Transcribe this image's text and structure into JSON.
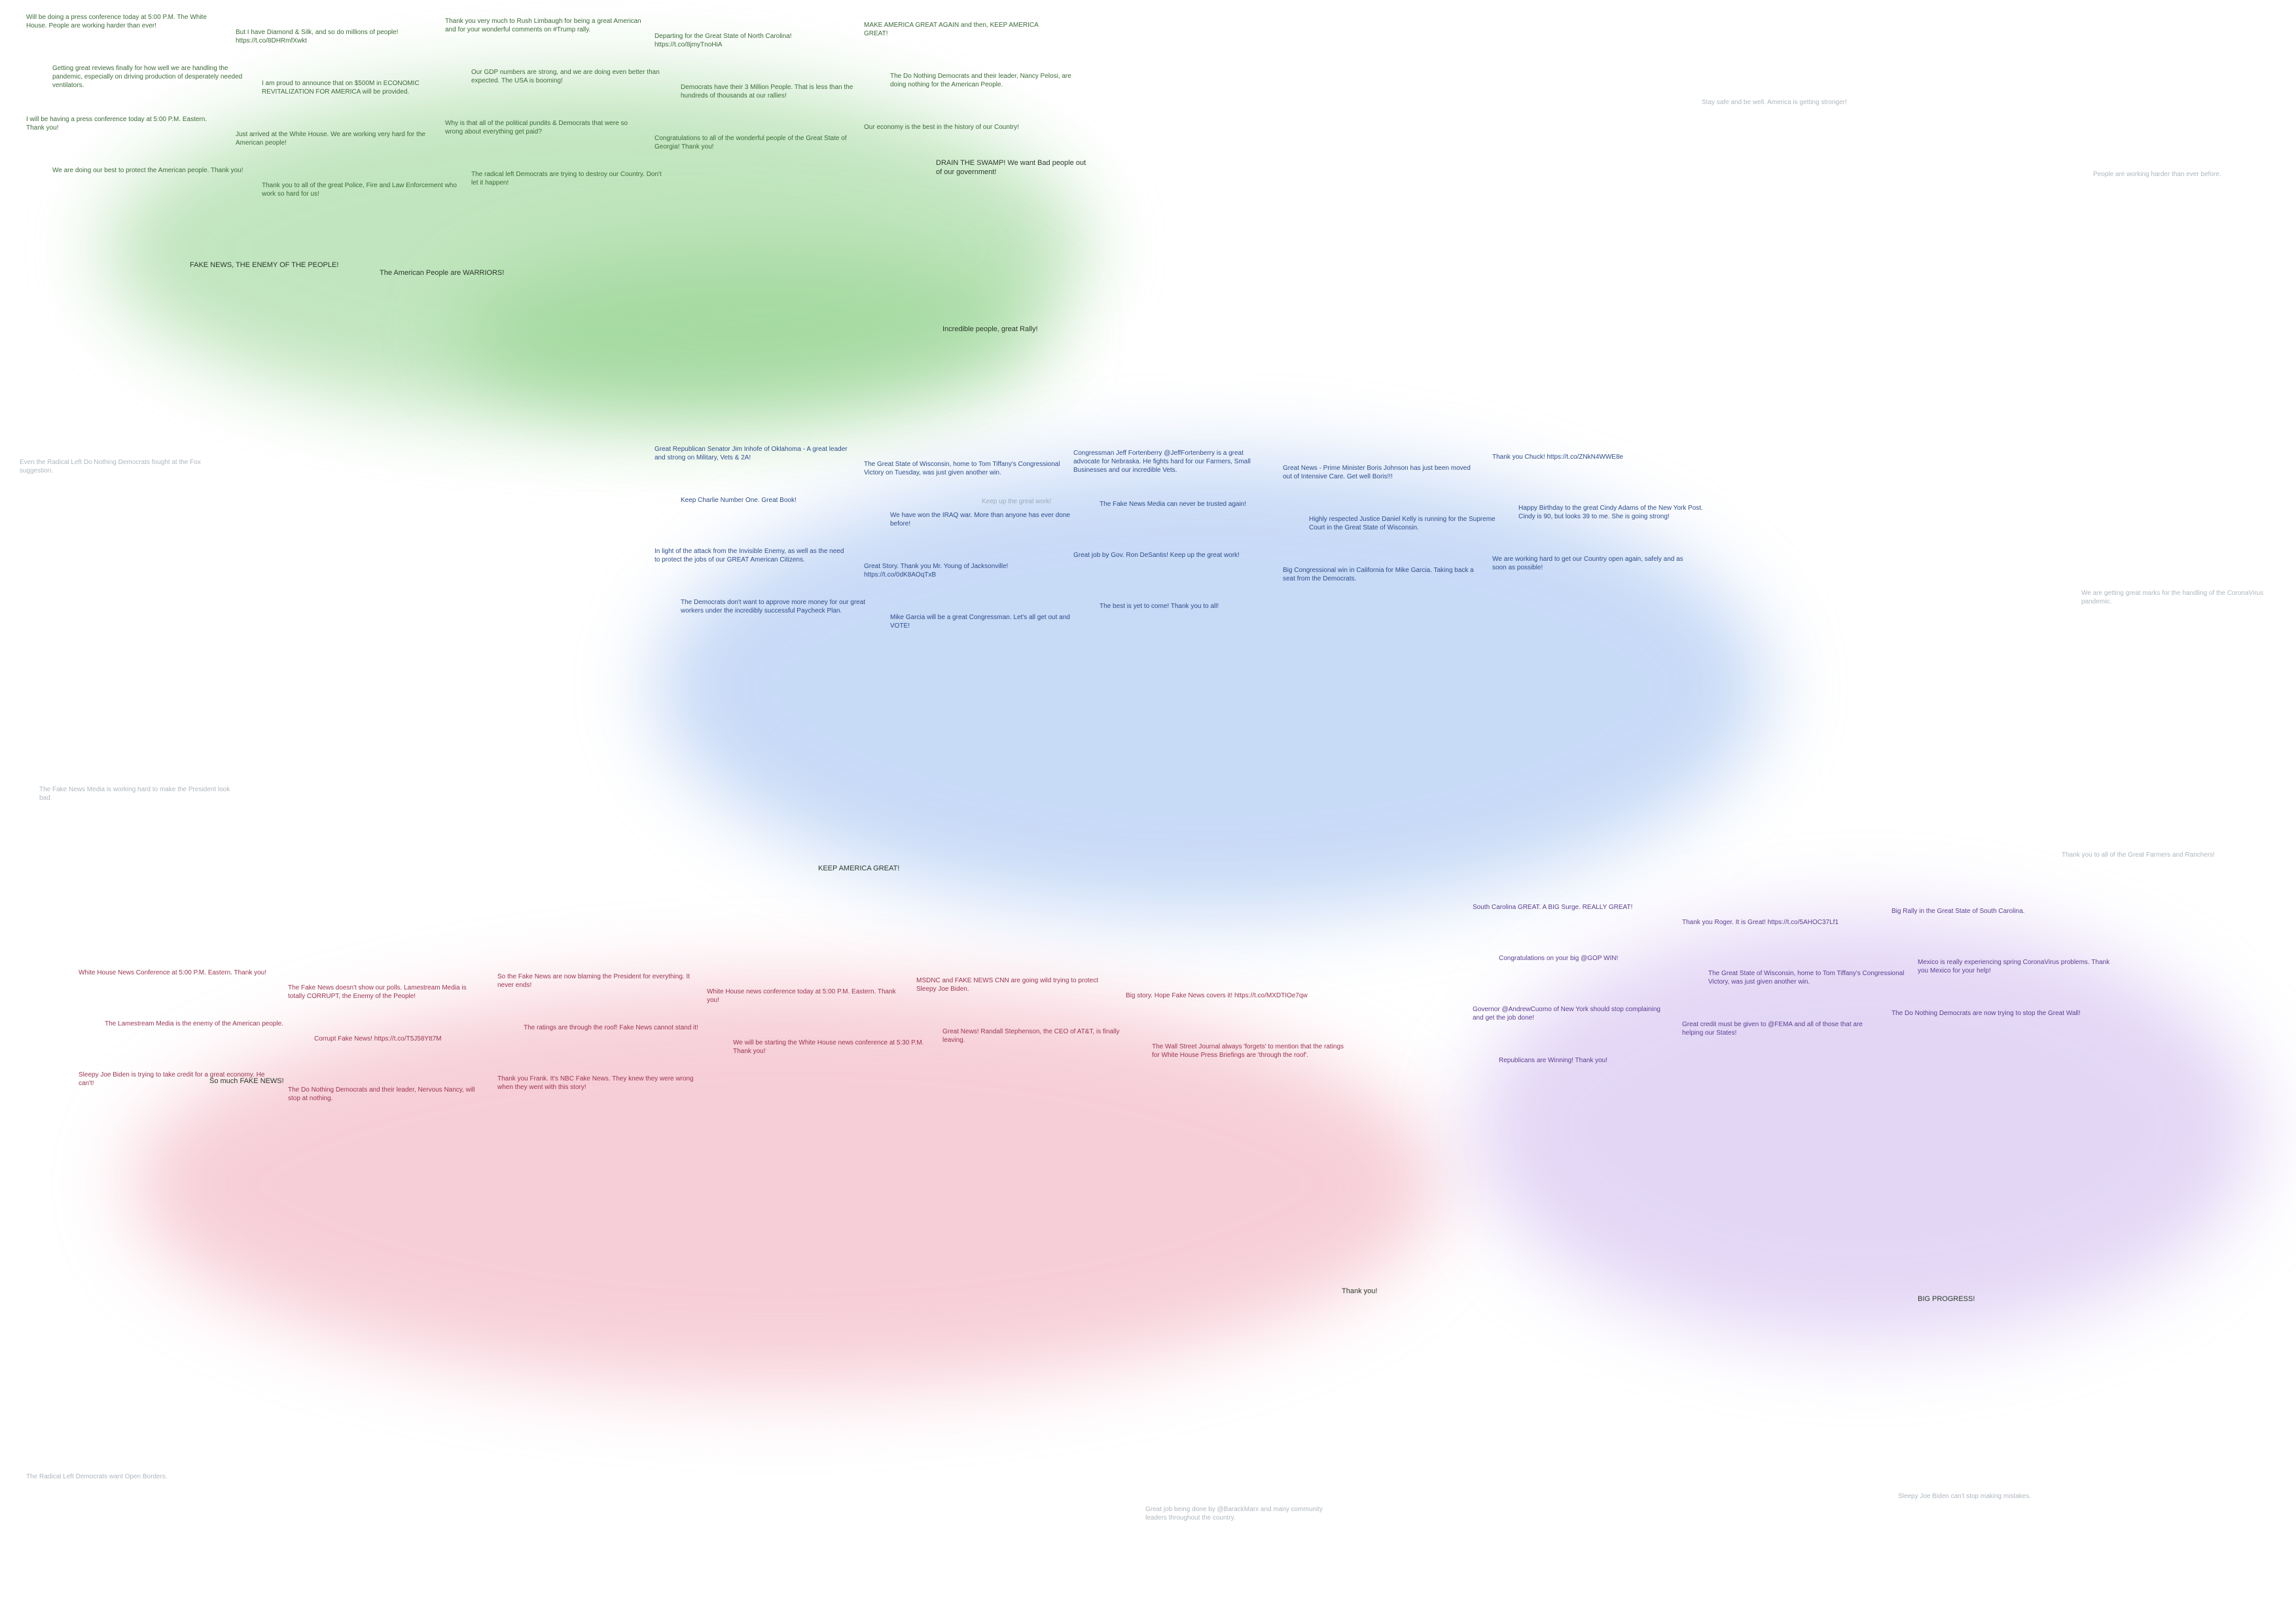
{
  "colors": {
    "green": "#8fd18a",
    "blue": "#9bbcf0",
    "pink": "#f0a7b8",
    "lavender": "#cdb6ee",
    "text_green": "#3d6b3a",
    "text_blue": "#2f4d8a",
    "text_pink": "#9a3550",
    "text_purple": "#5b3f8f",
    "text_gray": "#6b7a88"
  },
  "headlines": {
    "fake_news": "FAKE NEWS, THE ENEMY OF THE PEOPLE!",
    "warriors": "The American People are WARRIORS!",
    "drain_swamp": "DRAIN THE SWAMP! We want Bad people out of our government!",
    "incredible": "Incredible people, great Rally!",
    "keep_america": "KEEP AMERICA GREAT!",
    "big_progress": "BIG PROGRESS!",
    "thank_you": "Thank you!",
    "so_much_fake": "So much FAKE NEWS!"
  },
  "tweets": [
    {
      "cluster": "green",
      "text": "Will be doing a press conference today at 5:00 P.M. The White House. People are working harder than ever!"
    },
    {
      "cluster": "green",
      "text": "But I have Diamond & Silk, and so do millions of people! https://t.co/8DHRmfXwkt"
    },
    {
      "cluster": "green",
      "text": "Thank you very much to Rush Limbaugh for being a great American and for your wonderful comments on #Trump rally."
    },
    {
      "cluster": "green",
      "text": "Departing for the Great State of North Carolina! https://t.co/8jmyTnoHiA"
    },
    {
      "cluster": "green",
      "text": "MAKE AMERICA GREAT AGAIN and then, KEEP AMERICA GREAT!"
    },
    {
      "cluster": "green",
      "text": "Getting great reviews finally for how well we are handling the pandemic, especially on driving production of desperately needed ventilators."
    },
    {
      "cluster": "green",
      "text": "I am proud to announce that on $500M in ECONOMIC REVITALIZATION FOR AMERICA will be provided."
    },
    {
      "cluster": "green",
      "text": "Our GDP numbers are strong, and we are doing even better than expected. The USA is booming!"
    },
    {
      "cluster": "green",
      "text": "Democrats have their 3 Million People. That is less than the hundreds of thousands at our rallies!"
    },
    {
      "cluster": "green",
      "text": "The Do Nothing Democrats and their leader, Nancy Pelosi, are doing nothing for the American People."
    },
    {
      "cluster": "green",
      "text": "I will be having a press conference today at 5:00 P.M. Eastern. Thank you!"
    },
    {
      "cluster": "green",
      "text": "Just arrived at the White House. We are working very hard for the American people!"
    },
    {
      "cluster": "green",
      "text": "Why is that all of the political pundits & Democrats that were so wrong about everything get paid?"
    },
    {
      "cluster": "green",
      "text": "Congratulations to all of the wonderful people of the Great State of Georgia! Thank you!"
    },
    {
      "cluster": "green",
      "text": "Our economy is the best in the history of our Country!"
    },
    {
      "cluster": "green",
      "text": "We are doing our best to protect the American people. Thank you!"
    },
    {
      "cluster": "green",
      "text": "Thank you to all of the great Police, Fire and Law Enforcement who work so hard for us!"
    },
    {
      "cluster": "green",
      "text": "The radical left Democrats are trying to destroy our Country. Don't let it happen!"
    },
    {
      "cluster": "blue",
      "text": "Great Republican Senator Jim Inhofe of Oklahoma - A great leader and strong on Military, Vets & 2A!"
    },
    {
      "cluster": "blue",
      "text": "The Great State of Wisconsin, home to Tom Tiffany's Congressional Victory on Tuesday, was just given another win."
    },
    {
      "cluster": "blue",
      "text": "Congressman Jeff Fortenberry @JeffFortenberry is a great advocate for Nebraska. He fights hard for our Farmers, Small Businesses and our incredible Vets."
    },
    {
      "cluster": "blue",
      "text": "Great News - Prime Minister Boris Johnson has just been moved out of Intensive Care. Get well Boris!!!"
    },
    {
      "cluster": "blue",
      "text": "Thank you Chuck! https://t.co/ZNkN4WWE8e"
    },
    {
      "cluster": "blue",
      "text": "Keep Charlie Number One. Great Book!"
    },
    {
      "cluster": "blue",
      "text": "We have won the IRAQ war. More than anyone has ever done before!"
    },
    {
      "cluster": "blue",
      "text": "The Fake News Media can never be trusted again!"
    },
    {
      "cluster": "blue",
      "text": "Highly respected Justice Daniel Kelly is running for the Supreme Court in the Great State of Wisconsin."
    },
    {
      "cluster": "blue",
      "text": "Happy Birthday to the great Cindy Adams of the New York Post. Cindy is 90, but looks 39 to me. She is going strong!"
    },
    {
      "cluster": "blue",
      "text": "In light of the attack from the Invisible Enemy, as well as the need to protect the jobs of our GREAT American Citizens."
    },
    {
      "cluster": "blue",
      "text": "Great Story. Thank you Mr. Young of Jacksonville! https://t.co/0dK8AOqTxB"
    },
    {
      "cluster": "blue",
      "text": "Great job by Gov. Ron DeSantis! Keep up the great work!"
    },
    {
      "cluster": "blue",
      "text": "Big Congressional win in California for Mike Garcia. Taking back a seat from the Democrats."
    },
    {
      "cluster": "blue",
      "text": "We are working hard to get our Country open again, safely and as soon as possible!"
    },
    {
      "cluster": "blue",
      "text": "The Democrats don't want to approve more money for our great workers under the incredibly successful Paycheck Plan."
    },
    {
      "cluster": "blue",
      "text": "Mike Garcia will be a great Congressman. Let's all get out and VOTE!"
    },
    {
      "cluster": "blue",
      "text": "The best is yet to come! Thank you to all!"
    },
    {
      "cluster": "pink",
      "text": "White House News Conference at 5:00 P.M. Eastern. Thank you!"
    },
    {
      "cluster": "pink",
      "text": "The Fake News doesn't show our polls. Lamestream Media is totally CORRUPT, the Enemy of the People!"
    },
    {
      "cluster": "pink",
      "text": "So the Fake News are now blaming the President for everything. It never ends!"
    },
    {
      "cluster": "pink",
      "text": "White House news conference today at 5:00 P.M. Eastern. Thank you!"
    },
    {
      "cluster": "pink",
      "text": "MSDNC and FAKE NEWS CNN are going wild trying to protect Sleepy Joe Biden."
    },
    {
      "cluster": "pink",
      "text": "Big story. Hope Fake News covers it! https://t.co/MXDTIOe7qw"
    },
    {
      "cluster": "pink",
      "text": "The Lamestream Media is the enemy of the American people."
    },
    {
      "cluster": "pink",
      "text": "Corrupt Fake News! https://t.co/T5J58Ytt7M"
    },
    {
      "cluster": "pink",
      "text": "The ratings are through the roof! Fake News cannot stand it!"
    },
    {
      "cluster": "pink",
      "text": "We will be starting the White House news conference at 5:30 P.M. Thank you!"
    },
    {
      "cluster": "pink",
      "text": "Great News! Randall Stephenson, the CEO of AT&T, is finally leaving."
    },
    {
      "cluster": "pink",
      "text": "The Wall Street Journal always 'forgets' to mention that the ratings for White House Press Briefings are 'through the roof'."
    },
    {
      "cluster": "pink",
      "text": "Sleepy Joe Biden is trying to take credit for a great economy. He can't!"
    },
    {
      "cluster": "pink",
      "text": "The Do Nothing Democrats and their leader, Nervous Nancy, will stop at nothing."
    },
    {
      "cluster": "pink",
      "text": "Thank you Frank. It's NBC Fake News. They knew they were wrong when they went with this story!"
    },
    {
      "cluster": "lavender",
      "text": "South Carolina GREAT. A BIG Surge. REALLY GREAT!"
    },
    {
      "cluster": "lavender",
      "text": "Thank you Roger. It is Great! https://t.co/5AHOC37Lf1"
    },
    {
      "cluster": "lavender",
      "text": "Big Rally in the Great State of South Carolina."
    },
    {
      "cluster": "lavender",
      "text": "Congratulations on your big @GOP WIN!"
    },
    {
      "cluster": "lavender",
      "text": "The Great State of Wisconsin, home to Tom Tiffany's Congressional Victory, was just given another win."
    },
    {
      "cluster": "lavender",
      "text": "Mexico is really experiencing spring CoronaVirus problems. Thank you Mexico for your help!"
    },
    {
      "cluster": "lavender",
      "text": "Governor @AndrewCuomo of New York should stop complaining and get the job done!"
    },
    {
      "cluster": "lavender",
      "text": "Great credit must be given to @FEMA and all of those that are helping our States!"
    },
    {
      "cluster": "lavender",
      "text": "The Do Nothing Democrats are now trying to stop the Great Wall!"
    },
    {
      "cluster": "lavender",
      "text": "Republicans are Winning! Thank you!"
    },
    {
      "cluster": "gray",
      "text": "Even the Radical Left Do Nothing Democrats fought at the Fox suggestion."
    },
    {
      "cluster": "gray",
      "text": "People are working harder than ever before."
    },
    {
      "cluster": "gray",
      "text": "The Fake News Media is working hard to make the President look bad."
    },
    {
      "cluster": "gray",
      "text": "We are getting great marks for the handling of the CoronaVirus pandemic."
    },
    {
      "cluster": "gray",
      "text": "Great job being done by @BarackMarx and many community leaders throughout the country."
    },
    {
      "cluster": "gray",
      "text": "Sleepy Joe Biden can't stop making mistakes."
    },
    {
      "cluster": "gray",
      "text": "The Radical Left Democrats want Open Borders."
    },
    {
      "cluster": "gray",
      "text": "Thank you to all of the Great Farmers and Ranchers!"
    },
    {
      "cluster": "gray",
      "text": "Keep up the great work!"
    },
    {
      "cluster": "gray",
      "text": "Stay safe and be well. America is getting stronger!"
    }
  ]
}
